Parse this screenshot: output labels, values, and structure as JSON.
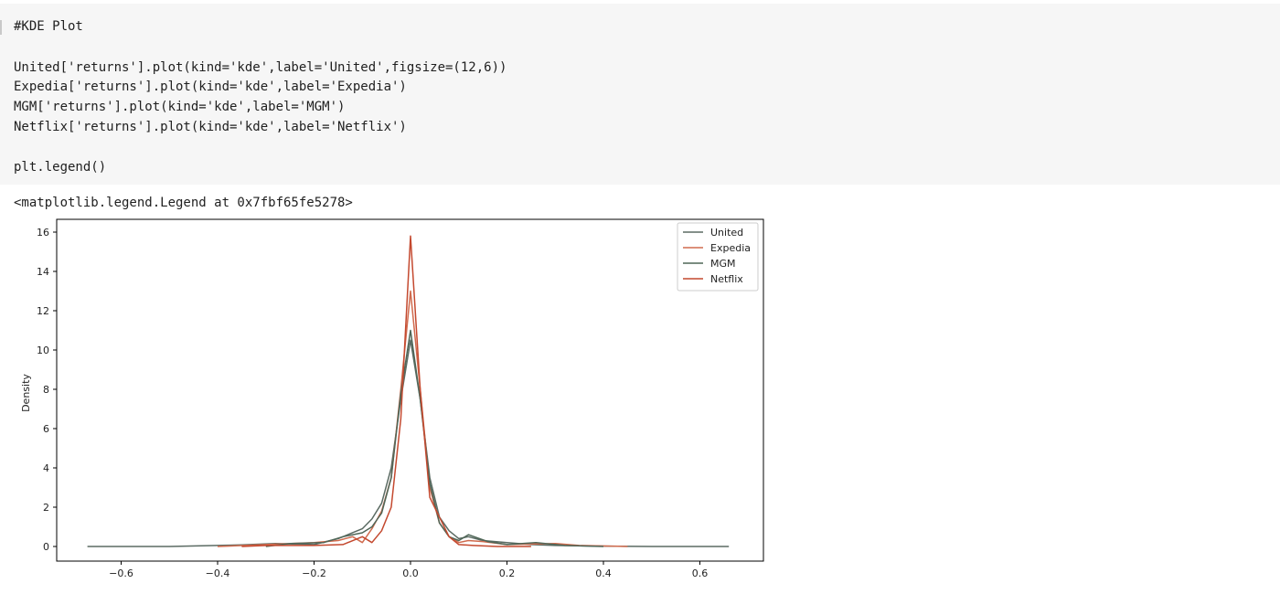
{
  "notebook": {
    "code_lines": [
      "#KDE Plot",
      "",
      "United['returns'].plot(kind='kde',label='United',figsize=(12,6))",
      "Expedia['returns'].plot(kind='kde',label='Expedia')",
      "MGM['returns'].plot(kind='kde',label='MGM')",
      "Netflix['returns'].plot(kind='kde',label='Netflix')",
      "",
      "plt.legend()"
    ],
    "output_text": "<matplotlib.legend.Legend at 0x7fbf65fe5278>"
  },
  "chart_data": {
    "type": "line",
    "xlabel": "",
    "ylabel": "Density",
    "xlim": [
      -0.72,
      0.72
    ],
    "ylim": [
      -0.8,
      16.6
    ],
    "xticks": [
      -0.6,
      -0.4,
      -0.2,
      0.0,
      0.2,
      0.4,
      0.6
    ],
    "xtick_labels": [
      "−0.6",
      "−0.4",
      "−0.2",
      "0.0",
      "0.2",
      "0.4",
      "0.6"
    ],
    "yticks": [
      0,
      2,
      4,
      6,
      8,
      10,
      12,
      14,
      16
    ],
    "ytick_labels": [
      "0",
      "2",
      "4",
      "6",
      "8",
      "10",
      "12",
      "14",
      "16"
    ],
    "legend_position": "top-right",
    "series": [
      {
        "name": "United",
        "color": "#5b6b63",
        "points": [
          [
            -0.67,
            0
          ],
          [
            -0.5,
            0
          ],
          [
            -0.35,
            0.08
          ],
          [
            -0.28,
            0.15
          ],
          [
            -0.2,
            0.1
          ],
          [
            -0.15,
            0.4
          ],
          [
            -0.1,
            0.9
          ],
          [
            -0.08,
            1.4
          ],
          [
            -0.06,
            2.2
          ],
          [
            -0.04,
            4
          ],
          [
            -0.02,
            7.5
          ],
          [
            0,
            10.5
          ],
          [
            0.02,
            7.5
          ],
          [
            0.04,
            3.5
          ],
          [
            0.06,
            1.5
          ],
          [
            0.08,
            0.8
          ],
          [
            0.1,
            0.4
          ],
          [
            0.12,
            0.5
          ],
          [
            0.15,
            0.3
          ],
          [
            0.2,
            0.2
          ],
          [
            0.25,
            0.1
          ],
          [
            0.3,
            0.05
          ],
          [
            0.4,
            0.02
          ],
          [
            0.5,
            0
          ],
          [
            0.66,
            0
          ]
        ]
      },
      {
        "name": "Expedia",
        "color": "#d06b4e",
        "points": [
          [
            -0.4,
            0
          ],
          [
            -0.3,
            0.1
          ],
          [
            -0.2,
            0.2
          ],
          [
            -0.15,
            0.3
          ],
          [
            -0.12,
            0.5
          ],
          [
            -0.1,
            0.2
          ],
          [
            -0.08,
            0.9
          ],
          [
            -0.06,
            1.8
          ],
          [
            -0.04,
            3.5
          ],
          [
            -0.02,
            8
          ],
          [
            0,
            13
          ],
          [
            0.02,
            8
          ],
          [
            0.04,
            3
          ],
          [
            0.06,
            1.2
          ],
          [
            0.08,
            0.5
          ],
          [
            0.1,
            0.2
          ],
          [
            0.12,
            0.3
          ],
          [
            0.15,
            0.25
          ],
          [
            0.2,
            0.1
          ],
          [
            0.3,
            0.15
          ],
          [
            0.35,
            0.05
          ],
          [
            0.45,
            0
          ]
        ]
      },
      {
        "name": "MGM",
        "color": "#4f6657",
        "points": [
          [
            -0.3,
            0
          ],
          [
            -0.25,
            0.15
          ],
          [
            -0.18,
            0.2
          ],
          [
            -0.14,
            0.5
          ],
          [
            -0.1,
            0.7
          ],
          [
            -0.08,
            1
          ],
          [
            -0.06,
            1.7
          ],
          [
            -0.04,
            3.5
          ],
          [
            -0.02,
            7.8
          ],
          [
            0,
            11
          ],
          [
            0.02,
            7.5
          ],
          [
            0.04,
            3.2
          ],
          [
            0.06,
            1.2
          ],
          [
            0.08,
            0.5
          ],
          [
            0.1,
            0.3
          ],
          [
            0.12,
            0.6
          ],
          [
            0.16,
            0.25
          ],
          [
            0.2,
            0.1
          ],
          [
            0.26,
            0.2
          ],
          [
            0.32,
            0.05
          ],
          [
            0.4,
            0
          ]
        ]
      },
      {
        "name": "Netflix",
        "color": "#c4492f",
        "points": [
          [
            -0.35,
            0
          ],
          [
            -0.3,
            0.05
          ],
          [
            -0.2,
            0.05
          ],
          [
            -0.14,
            0.1
          ],
          [
            -0.1,
            0.5
          ],
          [
            -0.08,
            0.2
          ],
          [
            -0.06,
            0.8
          ],
          [
            -0.04,
            2
          ],
          [
            -0.02,
            6.5
          ],
          [
            0,
            15.8
          ],
          [
            0.02,
            8
          ],
          [
            0.04,
            2.5
          ],
          [
            0.06,
            1.5
          ],
          [
            0.08,
            0.5
          ],
          [
            0.1,
            0.1
          ],
          [
            0.13,
            0.05
          ],
          [
            0.18,
            0
          ],
          [
            0.25,
            0
          ]
        ]
      }
    ]
  }
}
